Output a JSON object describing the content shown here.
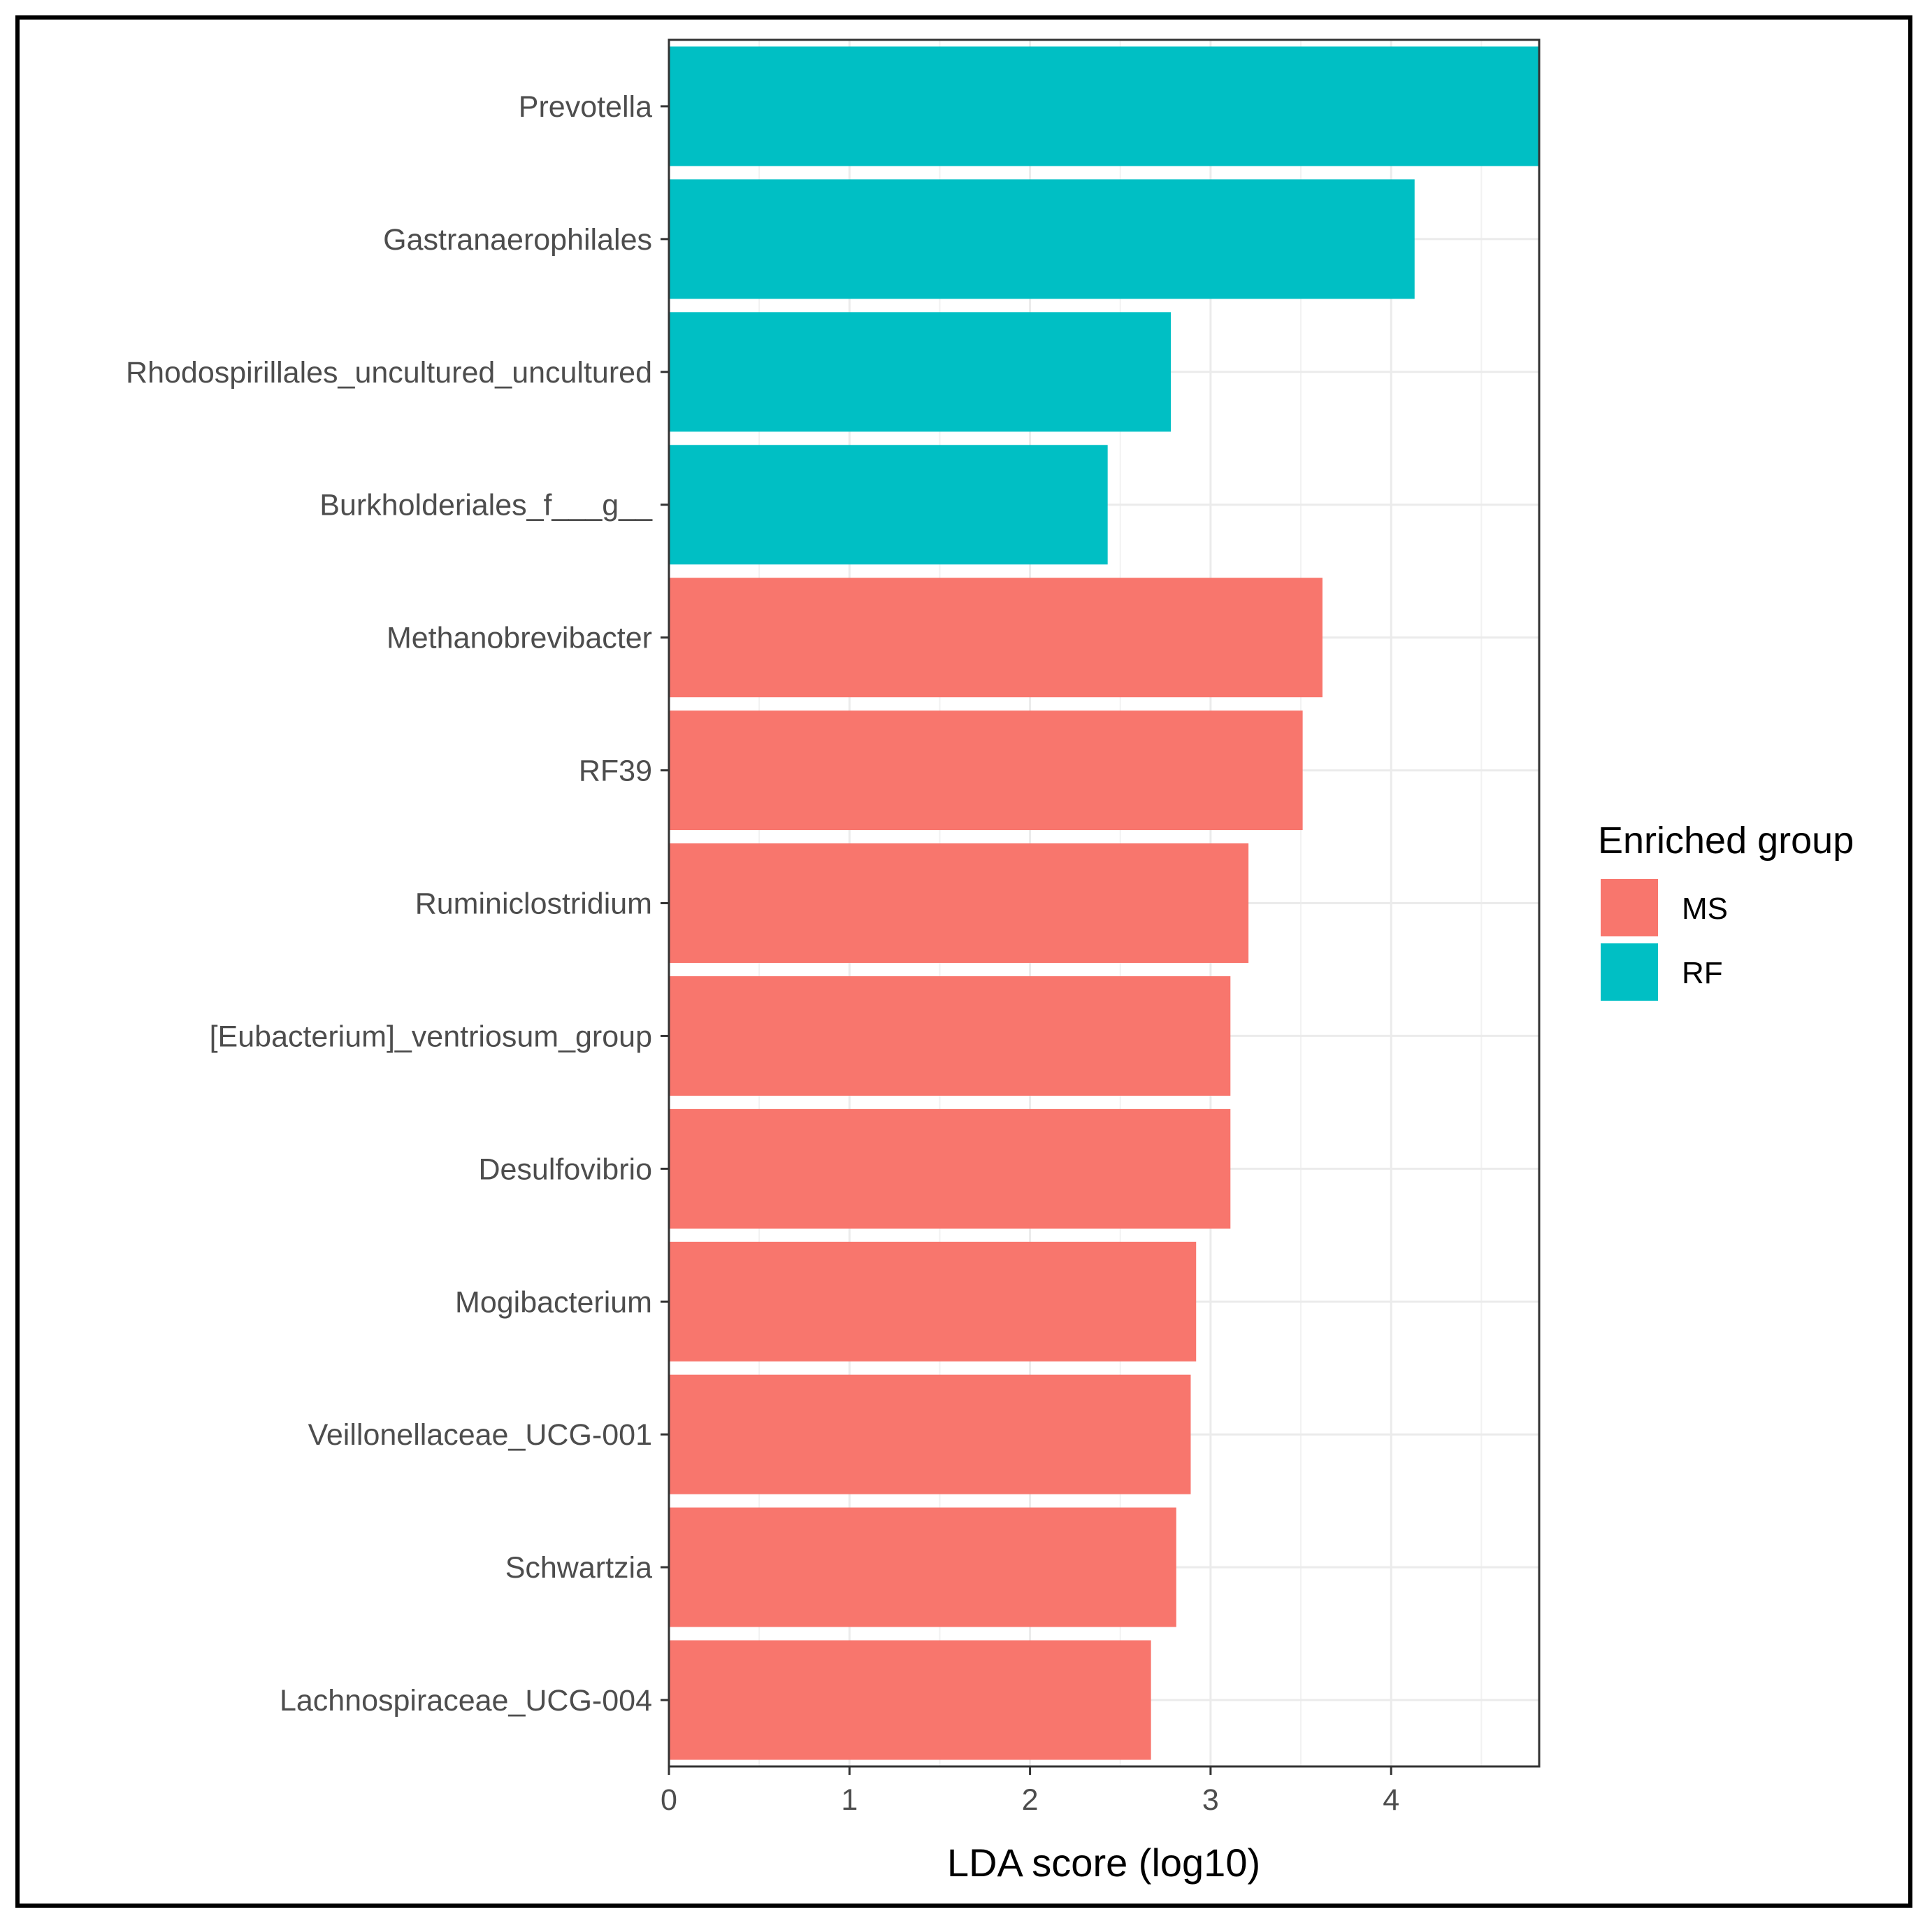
{
  "chart_data": {
    "type": "bar",
    "orientation": "horizontal",
    "xlabel": "LDA score (log10)",
    "ylabel": "",
    "xlim": [
      0,
      4.82
    ],
    "xticks": [
      0,
      1,
      2,
      3,
      4
    ],
    "grid": true,
    "legend": {
      "title": "Enriched group",
      "position": "right",
      "entries": [
        {
          "name": "MS",
          "color": "#F8766D"
        },
        {
          "name": "RF",
          "color": "#00BFC4"
        }
      ]
    },
    "categories": [
      "Prevotella",
      "Gastranaerophilales",
      "Rhodospirillales_uncultured_uncultured",
      "Burkholderiales_f___g__",
      "Methanobrevibacter",
      "RF39",
      "Ruminiclostridium",
      "[Eubacterium]_ventriosum_group",
      "Desulfovibrio",
      "Mogibacterium",
      "Veillonellaceae_UCG-001",
      "Schwartzia",
      "Lachnospiraceae_UCG-004"
    ],
    "values": [
      4.82,
      4.13,
      2.78,
      2.43,
      3.62,
      3.51,
      3.21,
      3.11,
      3.11,
      2.92,
      2.89,
      2.81,
      2.67
    ],
    "groups": [
      "RF",
      "RF",
      "RF",
      "RF",
      "MS",
      "MS",
      "MS",
      "MS",
      "MS",
      "MS",
      "MS",
      "MS",
      "MS"
    ]
  }
}
